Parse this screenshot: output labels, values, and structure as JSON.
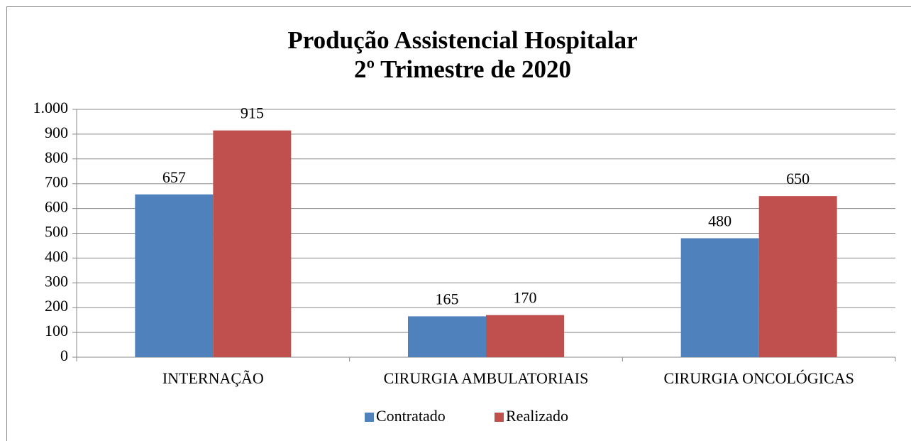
{
  "chart_data": {
    "type": "bar",
    "title": [
      "Produção Assistencial  Hospitalar",
      "2º Trimestre de 2020"
    ],
    "categories": [
      "INTERNAÇÃO",
      "CIRURGIA AMBULATORIAIS",
      "CIRURGIA ONCOLÓGICAS"
    ],
    "series": [
      {
        "name": "Contratado",
        "color": "#4f81bd",
        "values": [
          657,
          165,
          480
        ]
      },
      {
        "name": "Realizado",
        "color": "#c0504d",
        "values": [
          915,
          170,
          650
        ]
      }
    ],
    "ylim": [
      0,
      1000
    ],
    "yticks": [
      0,
      100,
      200,
      300,
      400,
      500,
      600,
      700,
      800,
      900,
      {
        "value": 1000,
        "label": "1.000"
      }
    ],
    "grid": true,
    "legend": "bottom"
  }
}
